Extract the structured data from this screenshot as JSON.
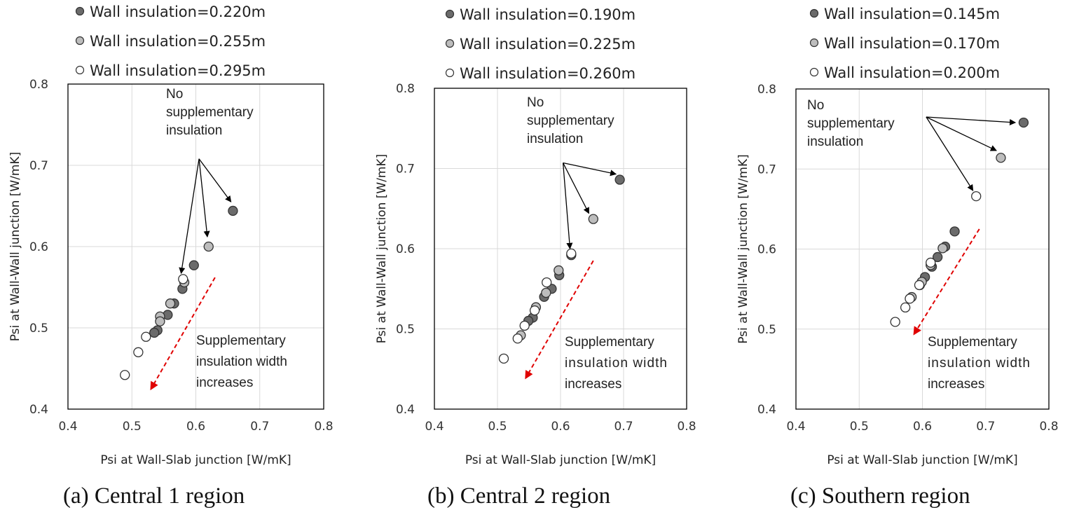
{
  "chart_data": [
    {
      "type": "scatter",
      "xlabel": "Psi at Wall-Slab junction [W/mK]",
      "ylabel": "Psi at Wall-Wall junction [W/mK]",
      "xlim": [
        0.4,
        0.8
      ],
      "ylim": [
        0.4,
        0.8
      ],
      "xticks": [
        "0.4",
        "0.5",
        "0.6",
        "0.7",
        "0.8"
      ],
      "yticks": [
        "0.4",
        "0.5",
        "0.6",
        "0.7",
        "0.8"
      ],
      "grid": true,
      "legend_position": "top",
      "caption": "(a) Central 1 region",
      "annotations": {
        "no_supp": [
          "No",
          "supplementary",
          "insulation"
        ],
        "supp": [
          "Supplementary",
          "insulation width",
          "increases"
        ]
      },
      "series": [
        {
          "name": "Wall insulation=0.220m",
          "color": "#6b6b6b",
          "points": [
            [
              0.658,
              0.644
            ],
            [
              0.597,
              0.577
            ],
            [
              0.579,
              0.548
            ],
            [
              0.566,
              0.53
            ],
            [
              0.556,
              0.516
            ],
            [
              0.54,
              0.497
            ],
            [
              0.535,
              0.494
            ]
          ]
        },
        {
          "name": "Wall insulation=0.255m",
          "color": "#bdbdbd",
          "points": [
            [
              0.62,
              0.6
            ],
            [
              0.582,
              0.556
            ],
            [
              0.56,
              0.53
            ],
            [
              0.544,
              0.514
            ],
            [
              0.544,
              0.508
            ]
          ]
        },
        {
          "name": "Wall insulation=0.295m",
          "color": "#ffffff",
          "points": [
            [
              0.58,
              0.56
            ],
            [
              0.522,
              0.489
            ],
            [
              0.51,
              0.47
            ],
            [
              0.489,
              0.442
            ]
          ]
        }
      ],
      "pointer_origin": [
        0.605,
        0.708
      ],
      "pointer_targets": [
        [
          0.655,
          0.655
        ],
        [
          0.618,
          0.612
        ],
        [
          0.577,
          0.567
        ]
      ],
      "trend_arrow": [
        [
          0.63,
          0.562
        ],
        [
          0.53,
          0.425
        ]
      ]
    },
    {
      "type": "scatter",
      "xlabel": "Psi at Wall-Slab junction [W/mK]",
      "ylabel": "Psi at Wall-Wall junction [W/mK]",
      "xlim": [
        0.4,
        0.8
      ],
      "ylim": [
        0.4,
        0.8
      ],
      "xticks": [
        "0.4",
        "0.5",
        "0.6",
        "0.7",
        "0.8"
      ],
      "yticks": [
        "0.4",
        "0.5",
        "0.6",
        "0.7",
        "0.8"
      ],
      "grid": true,
      "legend_position": "top",
      "caption": "(b) Central 2 region",
      "annotations": {
        "no_supp": [
          "No",
          "supplementary",
          "insulation"
        ],
        "supp": [
          "Supplementary",
          "insulation width",
          "increases"
        ]
      },
      "series": [
        {
          "name": "Wall insulation=0.190m",
          "color": "#6b6b6b",
          "points": [
            [
              0.694,
              0.686
            ],
            [
              0.617,
              0.592
            ],
            [
              0.598,
              0.567
            ],
            [
              0.586,
              0.55
            ],
            [
              0.574,
              0.54
            ],
            [
              0.556,
              0.514
            ],
            [
              0.549,
              0.51
            ]
          ]
        },
        {
          "name": "Wall insulation=0.225m",
          "color": "#bdbdbd",
          "points": [
            [
              0.652,
              0.637
            ],
            [
              0.597,
              0.573
            ],
            [
              0.577,
              0.545
            ],
            [
              0.561,
              0.527
            ],
            [
              0.537,
              0.492
            ]
          ]
        },
        {
          "name": "Wall insulation=0.260m",
          "color": "#ffffff",
          "points": [
            [
              0.617,
              0.594
            ],
            [
              0.578,
              0.558
            ],
            [
              0.559,
              0.523
            ],
            [
              0.543,
              0.504
            ],
            [
              0.532,
              0.488
            ],
            [
              0.51,
              0.463
            ]
          ]
        }
      ],
      "pointer_origin": [
        0.604,
        0.707
      ],
      "pointer_targets": [
        [
          0.688,
          0.693
        ],
        [
          0.645,
          0.644
        ],
        [
          0.615,
          0.6
        ]
      ],
      "trend_arrow": [
        [
          0.652,
          0.585
        ],
        [
          0.545,
          0.439
        ]
      ]
    },
    {
      "type": "scatter",
      "xlabel": "Psi at Wall-Slab junction [W/mK]",
      "ylabel": "Psi at Wall-Wall junction [W/mK]",
      "xlim": [
        0.4,
        0.8
      ],
      "ylim": [
        0.4,
        0.8
      ],
      "xticks": [
        "0.4",
        "0.5",
        "0.6",
        "0.7",
        "0.8"
      ],
      "yticks": [
        "0.4",
        "0.5",
        "0.6",
        "0.7",
        "0.8"
      ],
      "grid": true,
      "legend_position": "top",
      "caption": "(c) Southern region",
      "annotations": {
        "no_supp": [
          "No",
          "supplementary",
          "insulation"
        ],
        "supp": [
          "Supplementary",
          "insulation width",
          "increases"
        ]
      },
      "series": [
        {
          "name": "Wall insulation=0.145m",
          "color": "#6b6b6b",
          "points": [
            [
              0.76,
              0.758
            ],
            [
              0.651,
              0.622
            ],
            [
              0.636,
              0.603
            ],
            [
              0.624,
              0.59
            ],
            [
              0.615,
              0.578
            ],
            [
              0.604,
              0.565
            ],
            [
              0.596,
              0.555
            ]
          ]
        },
        {
          "name": "Wall insulation=0.170m",
          "color": "#bdbdbd",
          "points": [
            [
              0.724,
              0.714
            ],
            [
              0.632,
              0.601
            ],
            [
              0.613,
              0.58
            ],
            [
              0.599,
              0.559
            ],
            [
              0.583,
              0.54
            ]
          ]
        },
        {
          "name": "Wall insulation=0.200m",
          "color": "#ffffff",
          "points": [
            [
              0.685,
              0.666
            ],
            [
              0.613,
              0.583
            ],
            [
              0.595,
              0.555
            ],
            [
              0.58,
              0.538
            ],
            [
              0.573,
              0.527
            ],
            [
              0.557,
              0.509
            ]
          ]
        }
      ],
      "pointer_origin": [
        0.606,
        0.765
      ],
      "pointer_targets": [
        [
          0.747,
          0.758
        ],
        [
          0.717,
          0.723
        ],
        [
          0.68,
          0.673
        ]
      ],
      "trend_arrow": [
        [
          0.69,
          0.625
        ],
        [
          0.587,
          0.494
        ]
      ]
    }
  ]
}
